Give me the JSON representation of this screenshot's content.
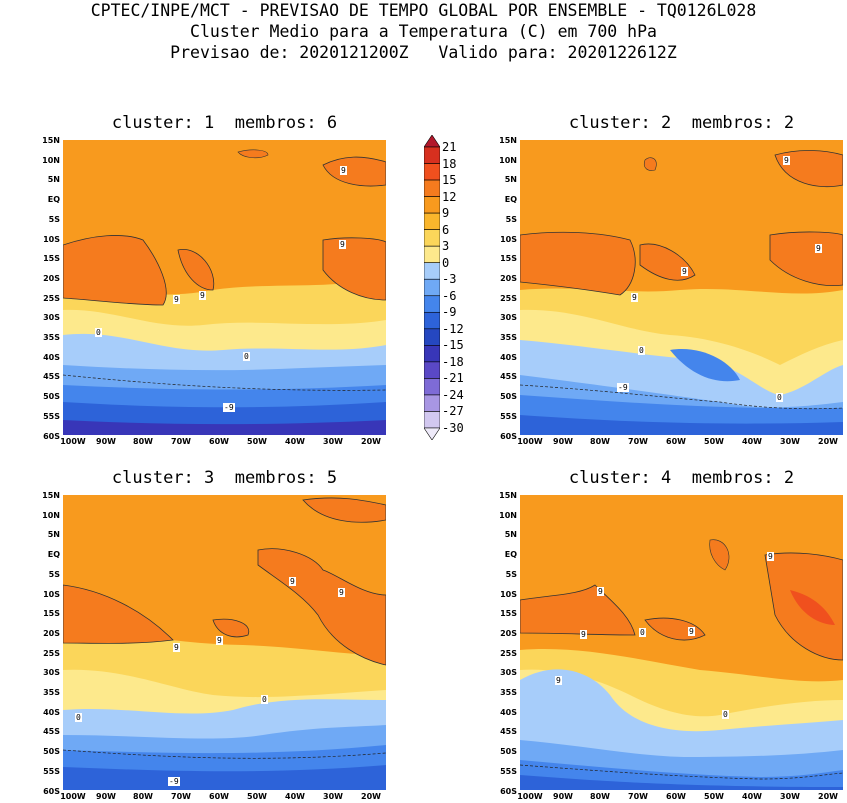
{
  "header": {
    "line1": "CPTEC/INPE/MCT - PREVISAO DE TEMPO GLOBAL POR ENSEMBLE - TQ0126L028",
    "line2": "Cluster Medio para a Temperatura (C) em 700 hPa",
    "line3": "Previsao de: 2020121200Z   Valido para: 2020122612Z"
  },
  "panels": [
    {
      "title": "cluster: 1  membros: 6"
    },
    {
      "title": "cluster: 2  membros: 2"
    },
    {
      "title": "cluster: 3  membros: 5"
    },
    {
      "title": "cluster: 4  membros: 2"
    }
  ],
  "lat_labels": [
    "15N",
    "10N",
    "5N",
    "EQ",
    "5S",
    "10S",
    "15S",
    "20S",
    "25S",
    "30S",
    "35S",
    "40S",
    "45S",
    "50S",
    "55S",
    "60S"
  ],
  "lon_labels": [
    "100W",
    "90W",
    "80W",
    "70W",
    "60W",
    "50W",
    "40W",
    "30W",
    "20W"
  ],
  "colorbar": {
    "levels": [
      "21",
      "18",
      "15",
      "12",
      "9",
      "6",
      "3",
      "0",
      "-3",
      "-6",
      "-9",
      "-12",
      "-15",
      "-18",
      "-21",
      "-24",
      "-27",
      "-30"
    ],
    "colors": [
      "#b2182b",
      "#d7301f",
      "#f0501e",
      "#f57b1e",
      "#f89a1e",
      "#fab62c",
      "#fbd65a",
      "#fde98c",
      "#a7cdfa",
      "#6fa9f5",
      "#4485ec",
      "#2d63d9",
      "#2547c0",
      "#3836b8",
      "#5a48c6",
      "#7e6bd6",
      "#a896e3",
      "#d2c8f0",
      "#eeeaf9"
    ]
  },
  "contour_labels": {
    "p1": [
      "9",
      "9",
      "9",
      "9",
      "0",
      "0",
      "-9"
    ],
    "p2": [
      "9",
      "9",
      "9",
      "9",
      "0",
      "0",
      "-9"
    ],
    "p3": [
      "9",
      "9",
      "9",
      "9",
      "0",
      "0",
      "-9"
    ],
    "p4": [
      "9",
      "9",
      "9",
      "9",
      "9",
      "0",
      "0"
    ]
  }
}
